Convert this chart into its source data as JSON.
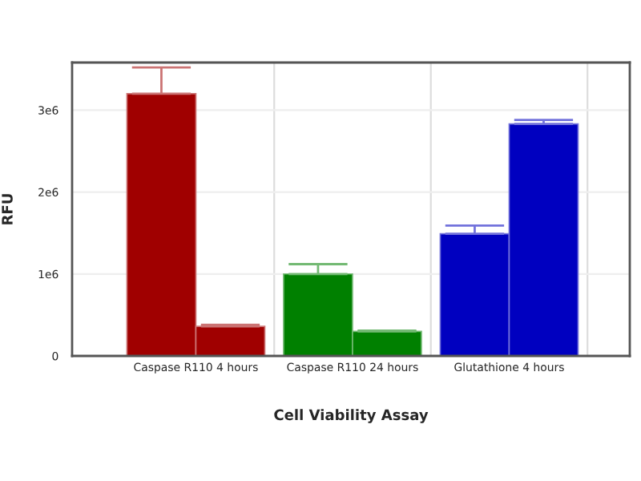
{
  "chart_data": {
    "type": "bar",
    "xlabel": "Cell Viability Assay",
    "ylabel": "RFU",
    "categories": [
      "Caspase R110 4 hours",
      "Caspase R110 24 hours",
      "Glutathione 4 hours"
    ],
    "series": [
      {
        "colors": [
          "#a00000",
          "#008000",
          "#0000c0"
        ],
        "values": [
          3200000,
          1000000,
          1490000
        ],
        "errors": [
          [
            3200000,
            3520000
          ],
          [
            1000000,
            1120000
          ],
          [
            1490000,
            1590000
          ]
        ]
      },
      {
        "colors": [
          "#a00000",
          "#008000",
          "#0000c0"
        ],
        "values": [
          360000,
          300000,
          2830000
        ],
        "errors": [
          [
            360000,
            380000
          ],
          [
            300000,
            310000
          ],
          [
            2830000,
            2880000
          ]
        ]
      }
    ],
    "ylim": [
      0,
      3580000
    ],
    "yticks": [
      0,
      {
        "value": 1000000,
        "label": "1e6"
      },
      {
        "value": 2000000,
        "label": "2e6"
      },
      {
        "value": 3000000,
        "label": "3e6"
      }
    ],
    "grid": true
  }
}
